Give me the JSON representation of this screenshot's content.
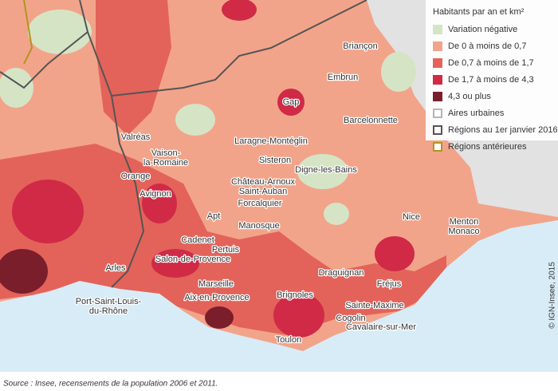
{
  "legend": {
    "title": "Habitants par an et km²",
    "items": [
      {
        "label": "Variation négative",
        "color": "#d6e4c6",
        "kind": "fill"
      },
      {
        "label": "De 0 à moins de 0,7",
        "color": "#f2a48a",
        "kind": "fill"
      },
      {
        "label": "De 0,7 à moins de 1,7",
        "color": "#e3635a",
        "kind": "fill"
      },
      {
        "label": "De 1,7 à moins de 4,3",
        "color": "#d02a47",
        "kind": "fill"
      },
      {
        "label": "4,3 ou plus",
        "color": "#7a1e2c",
        "kind": "fill"
      },
      {
        "label": "Aires urbaines",
        "color": "#b5b5b5",
        "kind": "outline"
      },
      {
        "label": "Régions au 1er janvier 2016",
        "color": "#555555",
        "kind": "outline"
      },
      {
        "label": "Régions antérieures",
        "color": "#b0961e",
        "kind": "outline"
      }
    ]
  },
  "cities": [
    {
      "lines": [
        "Briançon"
      ]
    },
    {
      "lines": [
        "Embrun"
      ]
    },
    {
      "lines": [
        "Gap"
      ]
    },
    {
      "lines": [
        "Barcelonnette"
      ]
    },
    {
      "lines": [
        "Laragne-Montéglin"
      ]
    },
    {
      "lines": [
        "Valréas"
      ]
    },
    {
      "lines": [
        "Vaison-",
        "la-Romaine"
      ]
    },
    {
      "lines": [
        "Sisteron"
      ]
    },
    {
      "lines": [
        "Digne-les-Bains"
      ]
    },
    {
      "lines": [
        "Orange"
      ]
    },
    {
      "lines": [
        "Château-Arnoux",
        "Saint-Auban"
      ]
    },
    {
      "lines": [
        "Avignon"
      ]
    },
    {
      "lines": [
        "Forcalquier"
      ]
    },
    {
      "lines": [
        "Apt"
      ]
    },
    {
      "lines": [
        "Nice"
      ]
    },
    {
      "lines": [
        "Menton",
        "Monaco"
      ]
    },
    {
      "lines": [
        "Manosque"
      ]
    },
    {
      "lines": [
        "Cadenet"
      ]
    },
    {
      "lines": [
        "Pertuis"
      ]
    },
    {
      "lines": [
        "Salon-de-Provence"
      ]
    },
    {
      "lines": [
        "Arles"
      ]
    },
    {
      "lines": [
        "Draguignan"
      ]
    },
    {
      "lines": [
        "Fréjus"
      ]
    },
    {
      "lines": [
        "Marseille"
      ]
    },
    {
      "lines": [
        "Port-Saint-Louis-",
        "du-Rhône"
      ]
    },
    {
      "lines": [
        "Aix-en-Provence"
      ]
    },
    {
      "lines": [
        "Brignoles"
      ]
    },
    {
      "lines": [
        "Sainte-Maxime"
      ]
    },
    {
      "lines": [
        "Cogolin"
      ]
    },
    {
      "lines": [
        "Cavalaire-sur-Mer"
      ]
    },
    {
      "lines": [
        "Toulon"
      ]
    }
  ],
  "copyright": "© IGN-Insee, 2015",
  "source": "Source : Insee, recensements de la population 2006 et 2011."
}
